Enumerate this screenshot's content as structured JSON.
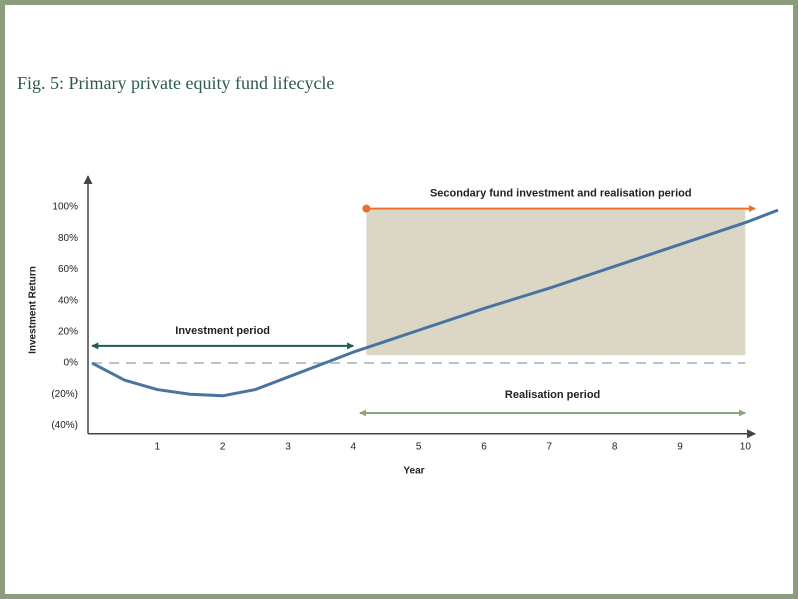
{
  "title": "Fig. 5: Primary private equity fund lifecycle",
  "chart_data": {
    "type": "line",
    "x": [
      0,
      0.5,
      1,
      1.5,
      2,
      2.5,
      3,
      3.5,
      4,
      5,
      6,
      7,
      8,
      9,
      10,
      10.5
    ],
    "values": [
      0,
      -11,
      -17,
      -20,
      -21,
      -17,
      -9,
      -1,
      7,
      21,
      35,
      48,
      62,
      76,
      90,
      98
    ],
    "color": "#4a74a0",
    "xlabel": "Year",
    "ylabel": "Investment Return",
    "xlim": [
      0,
      10.5
    ],
    "ylim": [
      -46,
      115
    ],
    "xticks": [
      1,
      2,
      3,
      4,
      5,
      6,
      7,
      8,
      9,
      10
    ],
    "yticks": [
      {
        "value": 100,
        "label": "100%"
      },
      {
        "value": 80,
        "label": "80%"
      },
      {
        "value": 60,
        "label": "60%"
      },
      {
        "value": 40,
        "label": "40%"
      },
      {
        "value": 20,
        "label": "20%"
      },
      {
        "value": 0,
        "label": "0%"
      },
      {
        "value": -20,
        "label": "(20%)"
      },
      {
        "value": -40,
        "label": "(40%)"
      }
    ],
    "grid": false,
    "zero_line": true,
    "shaded_region": {
      "x": [
        4.2,
        10
      ],
      "y": [
        5,
        99
      ],
      "color": "#dcd6c7"
    },
    "annotations": [
      {
        "text": "Investment period",
        "x": [
          0,
          4
        ],
        "y": 11,
        "color": "#1d5e57",
        "style": "double"
      },
      {
        "text": "Realisation period",
        "x": [
          4.1,
          10
        ],
        "y": -32,
        "color": "#8fa67a",
        "style": "double"
      },
      {
        "text": "Secondary fund investment and realisation period",
        "x": [
          4.2,
          10.15
        ],
        "y": 99,
        "color": "#e8702a",
        "style": "dot"
      }
    ]
  }
}
